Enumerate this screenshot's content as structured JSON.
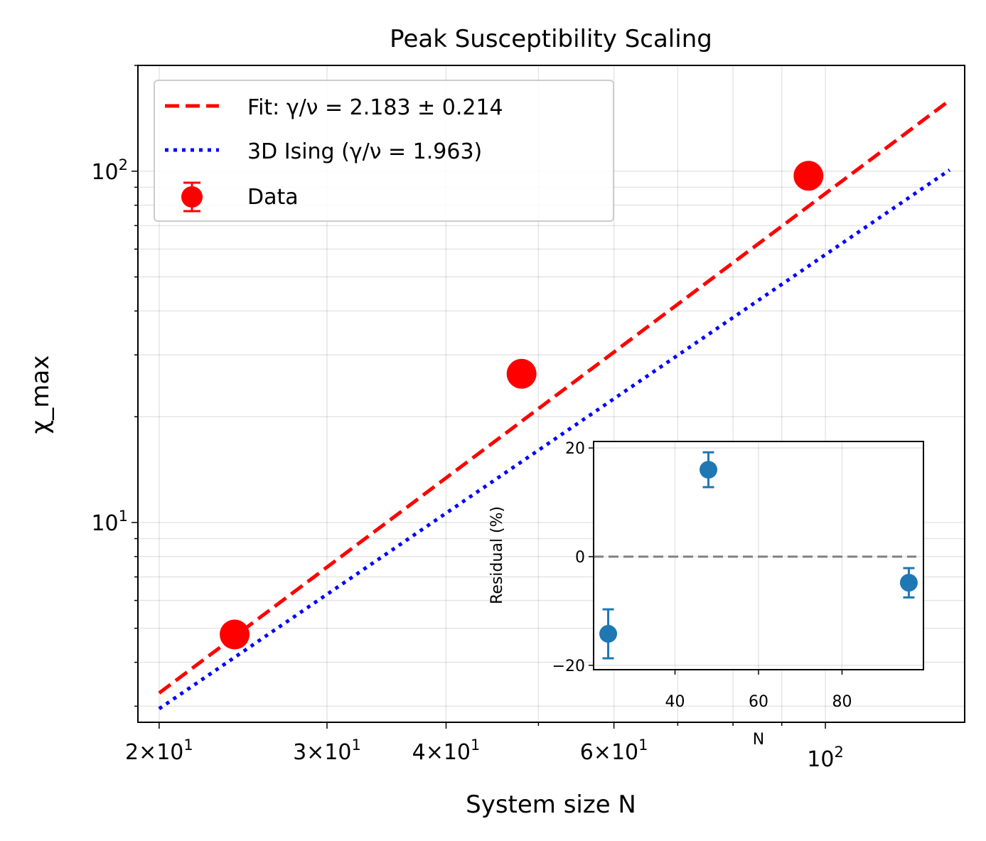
{
  "chart_data": [
    {
      "type": "scatter",
      "title": "Peak Susceptibility Scaling",
      "xlabel": "System size N",
      "ylabel": "χ_max",
      "xscale": "log",
      "yscale": "log",
      "xlim": [
        19.0,
        140.0
      ],
      "ylim": [
        2.7,
        200.0
      ],
      "grid": true,
      "legend_position": "top-left",
      "x_ticks": [
        {
          "value": 20,
          "mantissa": "2",
          "base": "10",
          "exp": "1"
        },
        {
          "value": 30,
          "mantissa": "3",
          "base": "10",
          "exp": "1"
        },
        {
          "value": 40,
          "mantissa": "4",
          "base": "10",
          "exp": "1"
        },
        {
          "value": 60,
          "mantissa": "6",
          "base": "10",
          "exp": "1"
        },
        {
          "value": 100,
          "mantissa": "",
          "base": "10",
          "exp": "2"
        }
      ],
      "y_ticks": [
        {
          "value": 10,
          "base": "10",
          "exp": "1"
        },
        {
          "value": 100,
          "base": "10",
          "exp": "2"
        }
      ],
      "series": [
        {
          "name": "Fit: γ/ν = 2.183 ± 0.214",
          "style": "dashed",
          "color": "#ff0000",
          "x": [
            20,
            135
          ],
          "y": [
            3.27,
            159.0
          ]
        },
        {
          "name": "3D Ising (γ/ν = 1.963)",
          "style": "dotted",
          "color": "#0000ff",
          "x": [
            20,
            135
          ],
          "y": [
            2.95,
            100.8
          ]
        },
        {
          "name": "Data",
          "style": "markers",
          "color": "#ff0000",
          "x": [
            24,
            48,
            96
          ],
          "y": [
            4.8,
            26.5,
            97.0
          ]
        }
      ]
    },
    {
      "type": "scatter",
      "title": "",
      "xlabel": "N",
      "ylabel": "Residual (%)",
      "xlim": [
        20.5,
        99.5
      ],
      "ylim": [
        -20.8,
        21.2
      ],
      "x_ticks": [
        40,
        60,
        80
      ],
      "y_ticks": [
        {
          "value": 20,
          "label": "20"
        },
        {
          "value": 0,
          "label": "0"
        },
        {
          "value": -20,
          "label": "−20"
        }
      ],
      "reference_line": {
        "y": 0,
        "style": "dashed",
        "color": "#808080"
      },
      "series": [
        {
          "style": "markers",
          "color": "#1f77b4",
          "x": [
            24,
            48,
            96
          ],
          "y": [
            -14.2,
            16.0,
            -4.8
          ],
          "err": [
            4.5,
            3.2,
            2.7
          ]
        }
      ]
    }
  ]
}
